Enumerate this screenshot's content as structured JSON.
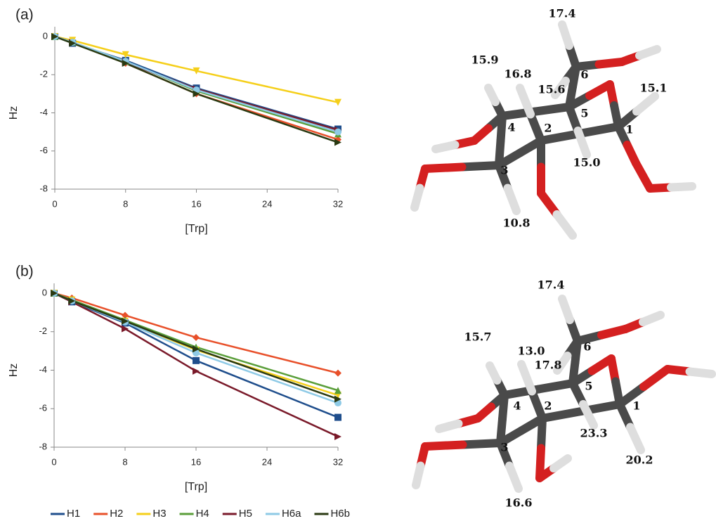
{
  "chart_data": [
    {
      "type": "line",
      "label": "(a)",
      "x_label": "[Trp]",
      "y_label": "Hz",
      "x": [
        0,
        2,
        8,
        16,
        32
      ],
      "xlim": [
        0,
        32
      ],
      "xticks": [
        0,
        8,
        16,
        24,
        32
      ],
      "ylim": [
        -8,
        0
      ],
      "yticks": [
        0,
        -2,
        -4,
        -6,
        -8
      ],
      "series": [
        {
          "name": "H1",
          "color": "#1f4e8c",
          "marker": "square",
          "values": [
            0,
            -0.35,
            -1.25,
            -2.7,
            -4.85
          ]
        },
        {
          "name": "H2",
          "color": "#e8502a",
          "marker": "diamond",
          "values": [
            0,
            -0.3,
            -1.4,
            -3.0,
            -5.4
          ]
        },
        {
          "name": "H3",
          "color": "#f5cf1a",
          "marker": "triangle-down",
          "values": [
            0,
            -0.2,
            -0.95,
            -1.8,
            -3.45
          ]
        },
        {
          "name": "H4",
          "color": "#5a9e3a",
          "marker": "triangle-up",
          "values": [
            0,
            -0.3,
            -1.3,
            -2.85,
            -5.1
          ]
        },
        {
          "name": "H5",
          "color": "#7a1a2a",
          "marker": "triangle-right",
          "values": [
            0,
            -0.3,
            -1.35,
            -2.75,
            -4.9
          ]
        },
        {
          "name": "H6a",
          "color": "#8ecae6",
          "marker": "circle",
          "values": [
            0,
            -0.3,
            -1.3,
            -2.8,
            -5.0
          ]
        },
        {
          "name": "H6b",
          "color": "#2a3a12",
          "marker": "triangle-right",
          "values": [
            0,
            -0.35,
            -1.4,
            -3.0,
            -5.55
          ]
        }
      ]
    },
    {
      "type": "line",
      "label": "(b)",
      "x_label": "[Trp]",
      "y_label": "Hz",
      "x": [
        0,
        2,
        8,
        16,
        32
      ],
      "xlim": [
        0,
        32
      ],
      "xticks": [
        0,
        8,
        16,
        24,
        32
      ],
      "ylim": [
        -8,
        0
      ],
      "yticks": [
        0,
        -2,
        -4,
        -6,
        -8
      ],
      "legend": "bottom",
      "series": [
        {
          "name": "H1",
          "color": "#1f4e8c",
          "marker": "square",
          "values": [
            0,
            -0.45,
            -1.55,
            -3.5,
            -6.45
          ]
        },
        {
          "name": "H2",
          "color": "#e8502a",
          "marker": "diamond",
          "values": [
            0,
            -0.25,
            -1.15,
            -2.3,
            -4.15
          ]
        },
        {
          "name": "H3",
          "color": "#f5cf1a",
          "marker": "triangle-down",
          "values": [
            0,
            -0.35,
            -1.45,
            -2.95,
            -5.3
          ]
        },
        {
          "name": "H4",
          "color": "#5a9e3a",
          "marker": "triangle-up",
          "values": [
            0,
            -0.35,
            -1.4,
            -2.8,
            -5.05
          ]
        },
        {
          "name": "H5",
          "color": "#7a1a2a",
          "marker": "triangle-right",
          "values": [
            0,
            -0.45,
            -1.85,
            -4.05,
            -7.45
          ]
        },
        {
          "name": "H6a",
          "color": "#8ecae6",
          "marker": "circle",
          "values": [
            0,
            -0.4,
            -1.5,
            -3.1,
            -5.7
          ]
        },
        {
          "name": "H6b",
          "color": "#2a3a12",
          "marker": "triangle-right",
          "values": [
            0,
            -0.4,
            -1.45,
            -2.9,
            -5.5
          ]
        }
      ]
    }
  ],
  "molecules": [
    {
      "atom_numbers": [
        "1",
        "2",
        "3",
        "4",
        "5",
        "6"
      ],
      "couplings": [
        "17.4",
        "15.9",
        "16.8",
        "15.6",
        "15.1",
        "15.0",
        "10.8"
      ]
    },
    {
      "atom_numbers": [
        "1",
        "2",
        "3",
        "4",
        "5",
        "6"
      ],
      "couplings": [
        "17.4",
        "15.7",
        "13.0",
        "17.8",
        "23.3",
        "20.2",
        "16.6"
      ]
    }
  ]
}
